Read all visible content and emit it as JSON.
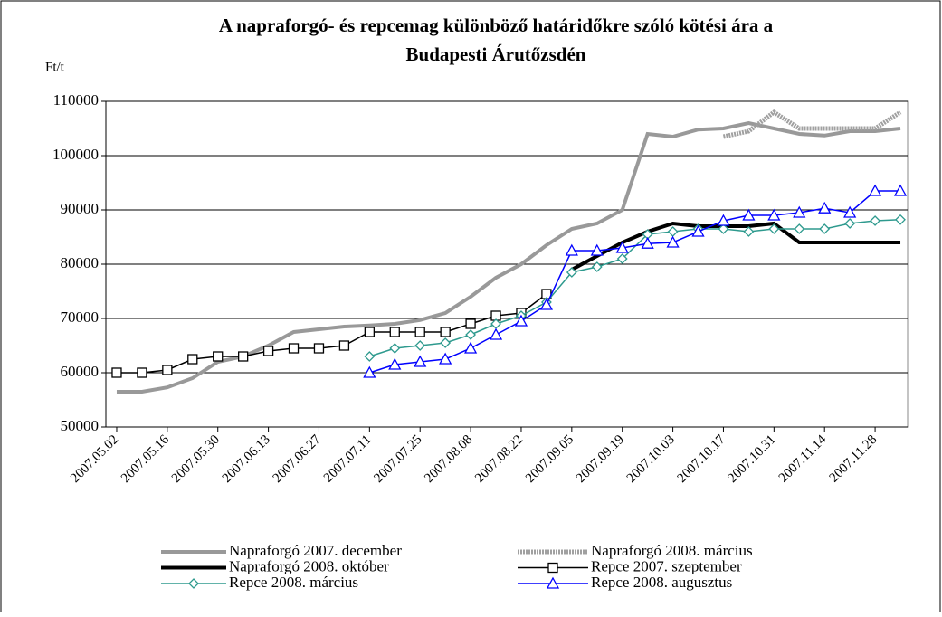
{
  "chart_data": {
    "type": "line",
    "title": [
      "A napraforgó- és repcemag különböző határidőkre szóló kötési ára a",
      "Budapesti Árutőzsdén"
    ],
    "y_label": "Ft/t",
    "x": [
      "2007.05.02",
      "2007.05.09",
      "2007.05.16",
      "2007.05.23",
      "2007.05.30",
      "2007.06.06",
      "2007.06.13",
      "2007.06.20",
      "2007.06.27",
      "2007.07.04",
      "2007.07.11",
      "2007.07.18",
      "2007.07.25",
      "2007.08.01",
      "2007.08.08",
      "2007.08.15",
      "2007.08.22",
      "2007.08.29",
      "2007.09.05",
      "2007.09.12",
      "2007.09.19",
      "2007.09.26",
      "2007.10.03",
      "2007.10.10",
      "2007.10.17",
      "2007.10.24",
      "2007.10.31",
      "2007.11.07",
      "2007.11.14",
      "2007.11.21",
      "2007.11.28",
      "2007.12.05"
    ],
    "xlim": [
      "2007.04.29",
      "2007.12.07"
    ],
    "xticks": [
      "2007.05.02",
      "2007.05.16",
      "2007.05.30",
      "2007.06.13",
      "2007.06.27",
      "2007.07.11",
      "2007.07.25",
      "2007.08.08",
      "2007.08.22",
      "2007.09.05",
      "2007.09.19",
      "2007.10.03",
      "2007.10.17",
      "2007.10.31",
      "2007.11.14",
      "2007.11.28"
    ],
    "ylim": [
      50000,
      110000
    ],
    "yticks": [
      50000,
      60000,
      70000,
      80000,
      90000,
      100000,
      110000
    ],
    "grid": true,
    "legend": "bottom",
    "series": [
      {
        "name": "Napraforgó 2007. december",
        "color": "#999999",
        "line_width": 4,
        "marker": null,
        "values": [
          56500,
          56500,
          57300,
          59000,
          62000,
          63000,
          65000,
          67500,
          68000,
          68500,
          68700,
          69000,
          69700,
          71000,
          74000,
          77500,
          80000,
          83500,
          86500,
          87500,
          90000,
          104000,
          103500,
          104800,
          105000,
          106000,
          105000,
          104000,
          103700,
          104500,
          104500,
          105000
        ]
      },
      {
        "name": "Napraforgó 2008. március",
        "color": "#a0a0a0",
        "line_width": 5,
        "marker": null,
        "dash": true,
        "values": [
          null,
          null,
          null,
          null,
          null,
          null,
          null,
          null,
          null,
          null,
          null,
          null,
          null,
          null,
          null,
          null,
          null,
          null,
          null,
          null,
          null,
          null,
          null,
          null,
          103500,
          104500,
          108000,
          105000,
          105000,
          105000,
          105000,
          108000
        ]
      },
      {
        "name": "Napraforgó 2008. október",
        "color": "#000000",
        "line_width": 4,
        "marker": null,
        "values": [
          null,
          null,
          null,
          null,
          null,
          null,
          null,
          null,
          null,
          null,
          null,
          null,
          null,
          null,
          null,
          null,
          null,
          null,
          79000,
          81500,
          84000,
          86000,
          87500,
          87000,
          87000,
          87000,
          87500,
          84000,
          84000,
          84000,
          84000,
          84000
        ]
      },
      {
        "name": "Repce 2007. szeptember",
        "color": "#000000",
        "line_width": 1.5,
        "marker": "square",
        "values": [
          60000,
          60000,
          60500,
          62500,
          63000,
          63000,
          64000,
          64500,
          64500,
          65000,
          67500,
          67500,
          67500,
          67500,
          69000,
          70500,
          71000,
          74500,
          null,
          null,
          null,
          null,
          null,
          null,
          null,
          null,
          null,
          null,
          null,
          null,
          null,
          null
        ]
      },
      {
        "name": "Repce 2008. március",
        "color": "#2e9a8e",
        "line_width": 1.5,
        "marker": "diamond",
        "values": [
          null,
          null,
          null,
          null,
          null,
          null,
          null,
          null,
          null,
          null,
          63000,
          64500,
          65000,
          65500,
          67000,
          69000,
          70500,
          73000,
          78500,
          79500,
          81000,
          85500,
          86000,
          86500,
          86500,
          86000,
          86500,
          86500,
          86500,
          87500,
          88000,
          88200
        ]
      },
      {
        "name": "Repce 2008. augusztus",
        "color": "#0000ff",
        "line_width": 1.5,
        "marker": "triangle",
        "values": [
          null,
          null,
          null,
          null,
          null,
          null,
          null,
          null,
          null,
          null,
          60000,
          61500,
          62000,
          62500,
          64500,
          67000,
          69500,
          72500,
          82500,
          82500,
          83000,
          83800,
          84000,
          86000,
          88000,
          89000,
          89000,
          89500,
          90300,
          89500,
          93500,
          93500
        ]
      }
    ]
  }
}
